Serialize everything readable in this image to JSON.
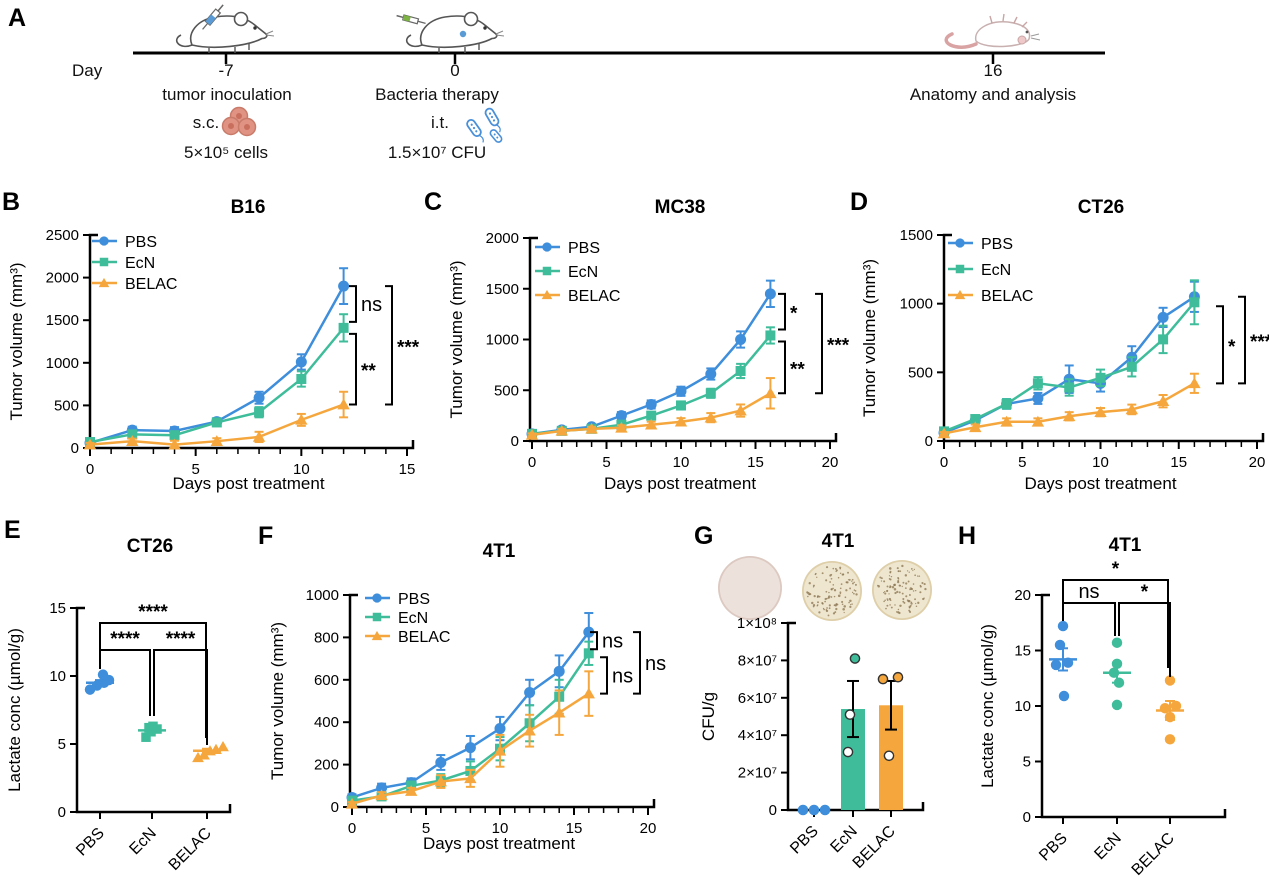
{
  "figure": {
    "panel_letters": [
      "A",
      "B",
      "C",
      "D",
      "E",
      "F",
      "G",
      "H"
    ],
    "timeline": {
      "axis_label": "Day",
      "events": [
        {
          "day": "-7",
          "title": "tumor inoculation",
          "route": "s.c.",
          "detail": "5×10⁵ cells",
          "icon": "tumor-cells"
        },
        {
          "day": "0",
          "title": "Bacteria therapy",
          "route": "i.t.",
          "detail": "1.5×10⁷ CFU",
          "icon": "bacteria"
        },
        {
          "day": "16",
          "title": "Anatomy and analysis",
          "icon": "dead-mouse"
        }
      ]
    }
  },
  "colors": {
    "PBS": "#3E8EDB",
    "EcN": "#3FBD9B",
    "BELAC": "#F5A73E",
    "axis": "#000000",
    "tumor_cell": "#E09283",
    "tumor_cell_dark": "#C96F5E",
    "bacteria_blue": "#4A90D9",
    "syringe_blue": "#5B9BD5",
    "syringe_green": "#7CB342",
    "dead_mouse_pink": "#D9A3A3",
    "dish_plain": "#EDE1DB",
    "dish_culture": "#EFE6CF",
    "colony": "#8A7450"
  },
  "chart_data": [
    {
      "panel": "B",
      "type": "line",
      "title": "B16",
      "xlabel": "Days post treatment",
      "ylabel": "Tumor volume (mm³)",
      "xlim": [
        0,
        15
      ],
      "xticks": [
        0,
        5,
        10,
        15
      ],
      "minor_x_step": 1,
      "ylim": [
        0,
        2500
      ],
      "yticks": [
        0,
        500,
        1000,
        1500,
        2000,
        2500
      ],
      "x": [
        0,
        2,
        4,
        6,
        8,
        10,
        12
      ],
      "series": [
        {
          "name": "PBS",
          "marker": "circle",
          "values": [
            60,
            210,
            200,
            310,
            590,
            1010,
            1900
          ],
          "errors": [
            30,
            40,
            45,
            40,
            70,
            90,
            210
          ]
        },
        {
          "name": "EcN",
          "marker": "square",
          "values": [
            70,
            160,
            150,
            300,
            420,
            810,
            1410
          ],
          "errors": [
            25,
            35,
            45,
            40,
            60,
            90,
            160
          ]
        },
        {
          "name": "BELAC",
          "marker": "triangle",
          "values": [
            40,
            80,
            40,
            80,
            130,
            330,
            510
          ],
          "errors": [
            20,
            30,
            45,
            35,
            60,
            70,
            150
          ]
        }
      ],
      "significance": [
        {
          "groups": [
            "PBS",
            "EcN"
          ],
          "label": "ns"
        },
        {
          "groups": [
            "EcN",
            "BELAC"
          ],
          "label": "**"
        },
        {
          "groups": [
            "PBS",
            "BELAC"
          ],
          "label": "***"
        }
      ]
    },
    {
      "panel": "C",
      "type": "line",
      "title": "MC38",
      "xlabel": "Days post treatment",
      "ylabel": "Tumor volume (mm³)",
      "xlim": [
        0,
        20
      ],
      "xticks": [
        0,
        5,
        10,
        15,
        20
      ],
      "minor_x_step": 1,
      "ylim": [
        0,
        2000
      ],
      "yticks": [
        0,
        500,
        1000,
        1500,
        2000
      ],
      "x": [
        0,
        2,
        4,
        6,
        8,
        10,
        12,
        14,
        16
      ],
      "series": [
        {
          "name": "PBS",
          "marker": "circle",
          "values": [
            70,
            110,
            140,
            250,
            360,
            490,
            660,
            1000,
            1450
          ],
          "errors": [
            20,
            20,
            25,
            35,
            40,
            45,
            55,
            80,
            130
          ]
        },
        {
          "name": "EcN",
          "marker": "square",
          "values": [
            70,
            100,
            120,
            160,
            250,
            350,
            470,
            690,
            1040
          ],
          "errors": [
            15,
            20,
            20,
            40,
            35,
            40,
            45,
            70,
            80
          ]
        },
        {
          "name": "BELAC",
          "marker": "triangle",
          "values": [
            60,
            100,
            120,
            130,
            160,
            190,
            230,
            300,
            470
          ],
          "errors": [
            15,
            20,
            20,
            25,
            30,
            35,
            45,
            60,
            150
          ]
        }
      ],
      "significance": [
        {
          "groups": [
            "PBS",
            "EcN"
          ],
          "label": "*"
        },
        {
          "groups": [
            "EcN",
            "BELAC"
          ],
          "label": "**"
        },
        {
          "groups": [
            "PBS",
            "BELAC"
          ],
          "label": "***"
        }
      ]
    },
    {
      "panel": "D",
      "type": "line",
      "title": "CT26",
      "xlabel": "Days post treatment",
      "ylabel": "Tumor volume (mm³)",
      "xlim": [
        0,
        20
      ],
      "xticks": [
        0,
        5,
        10,
        15,
        20
      ],
      "minor_x_step": 1,
      "ylim": [
        0,
        1500
      ],
      "yticks": [
        0,
        500,
        1000,
        1500
      ],
      "x": [
        0,
        2,
        4,
        6,
        8,
        10,
        12,
        14,
        16
      ],
      "series": [
        {
          "name": "PBS",
          "marker": "circle",
          "values": [
            60,
            150,
            270,
            310,
            450,
            420,
            610,
            900,
            1050
          ],
          "errors": [
            15,
            25,
            35,
            40,
            100,
            60,
            80,
            70,
            110
          ]
        },
        {
          "name": "EcN",
          "marker": "square",
          "values": [
            70,
            160,
            270,
            420,
            390,
            460,
            540,
            740,
            1010
          ],
          "errors": [
            15,
            25,
            35,
            45,
            60,
            60,
            70,
            100,
            160
          ]
        },
        {
          "name": "BELAC",
          "marker": "triangle",
          "values": [
            55,
            100,
            140,
            140,
            180,
            210,
            230,
            290,
            420
          ],
          "errors": [
            10,
            20,
            25,
            25,
            30,
            30,
            35,
            45,
            70
          ]
        }
      ],
      "significance": [
        {
          "groups": [
            "EcN",
            "BELAC"
          ],
          "label": "*"
        },
        {
          "groups": [
            "PBS",
            "BELAC"
          ],
          "label": "***"
        }
      ]
    },
    {
      "panel": "E",
      "type": "scatter",
      "title": "CT26",
      "ylabel": "Lactate conc (µmol/g)",
      "ylim": [
        0,
        15
      ],
      "yticks": [
        0,
        5,
        10,
        15
      ],
      "categories": [
        "PBS",
        "EcN",
        "BELAC"
      ],
      "groups": [
        {
          "name": "PBS",
          "marker": "circle",
          "points": [
            9.0,
            9.3,
            9.5,
            9.7,
            10.1
          ],
          "mean": 9.5,
          "sem": 0.2
        },
        {
          "name": "EcN",
          "marker": "square",
          "points": [
            5.5,
            5.9,
            6.1,
            6.2,
            6.3
          ],
          "mean": 6.0,
          "sem": 0.15
        },
        {
          "name": "BELAC",
          "marker": "triangle",
          "points": [
            4.0,
            4.2,
            4.5,
            4.6,
            4.8
          ],
          "mean": 4.5,
          "sem": 0.15
        }
      ],
      "significance": [
        {
          "groups": [
            "PBS",
            "BELAC"
          ],
          "label": "****"
        },
        {
          "groups": [
            "PBS",
            "EcN"
          ],
          "label": "****"
        },
        {
          "groups": [
            "EcN",
            "BELAC"
          ],
          "label": "****"
        }
      ]
    },
    {
      "panel": "F",
      "type": "line",
      "title": "4T1",
      "xlabel": "Days post treatment",
      "ylabel": "Tumor volume (mm³)",
      "xlim": [
        0,
        20
      ],
      "xticks": [
        0,
        5,
        10,
        15,
        20
      ],
      "minor_x_step": 1,
      "ylim": [
        0,
        1000
      ],
      "yticks": [
        0,
        200,
        400,
        600,
        800,
        1000
      ],
      "x": [
        0,
        2,
        4,
        6,
        8,
        10,
        12,
        14,
        16
      ],
      "series": [
        {
          "name": "PBS",
          "marker": "circle",
          "values": [
            45,
            90,
            115,
            210,
            280,
            370,
            540,
            640,
            825
          ],
          "errors": [
            15,
            20,
            20,
            35,
            55,
            55,
            60,
            75,
            90
          ]
        },
        {
          "name": "EcN",
          "marker": "square",
          "values": [
            30,
            50,
            100,
            125,
            170,
            275,
            395,
            520,
            725
          ],
          "errors": [
            10,
            15,
            20,
            30,
            45,
            55,
            85,
            80,
            55
          ]
        },
        {
          "name": "BELAC",
          "marker": "triangle",
          "values": [
            15,
            55,
            75,
            120,
            135,
            265,
            360,
            445,
            535
          ],
          "errors": [
            8,
            15,
            15,
            30,
            40,
            75,
            75,
            105,
            105
          ]
        }
      ],
      "significance": [
        {
          "groups": [
            "PBS",
            "EcN"
          ],
          "label": "ns"
        },
        {
          "groups": [
            "EcN",
            "BELAC"
          ],
          "label": "ns"
        },
        {
          "groups": [
            "PBS",
            "BELAC"
          ],
          "label": "ns"
        }
      ]
    },
    {
      "panel": "G",
      "type": "bar",
      "title": "4T1",
      "ylabel": "CFU/g",
      "ylim": [
        0,
        100000000
      ],
      "yticks": [
        0,
        20000000,
        40000000,
        60000000,
        80000000,
        100000000
      ],
      "ytick_labels": [
        "0",
        "2×10⁷",
        "4×10⁷",
        "6×10⁷",
        "8×10⁷",
        "1×10⁸"
      ],
      "categories": [
        "PBS",
        "EcN",
        "BELAC"
      ],
      "bars": [
        {
          "name": "PBS",
          "value": 0,
          "error": 0,
          "points": [
            {
              "value": 0,
              "style": "filled"
            },
            {
              "value": 0,
              "style": "filled"
            },
            {
              "value": 0,
              "style": "filled"
            }
          ]
        },
        {
          "name": "EcN",
          "value": 54000000,
          "error": 15000000,
          "points": [
            {
              "value": 81000000,
              "style": "filled"
            },
            {
              "value": 51000000,
              "style": "open"
            },
            {
              "value": 31000000,
              "style": "open"
            }
          ]
        },
        {
          "name": "BELAC",
          "value": 56000000,
          "error": 13000000,
          "points": [
            {
              "value": 70000000,
              "style": "filled"
            },
            {
              "value": 71000000,
              "style": "filled"
            },
            {
              "value": 29000000,
              "style": "open"
            }
          ]
        }
      ],
      "plates": [
        {
          "colonies": false
        },
        {
          "colonies": true
        },
        {
          "colonies": true
        }
      ],
      "significance": []
    },
    {
      "panel": "H",
      "type": "scatter",
      "title": "4T1",
      "ylabel": "Lactate conc (µmol/g)",
      "ylim": [
        0,
        20
      ],
      "yticks": [
        0,
        5,
        10,
        15,
        20
      ],
      "categories": [
        "PBS",
        "EcN",
        "BELAC"
      ],
      "groups": [
        {
          "name": "PBS",
          "marker": "circle",
          "points": [
            17.2,
            15.5,
            13.9,
            13.7,
            10.9
          ],
          "mean": 14.2,
          "sem": 1.0
        },
        {
          "name": "EcN",
          "marker": "circle",
          "points": [
            15.7,
            13.8,
            13.0,
            12.1,
            10.1
          ],
          "mean": 13.0,
          "sem": 0.9
        },
        {
          "name": "BELAC",
          "marker": "circle",
          "points": [
            12.3,
            10.0,
            9.8,
            9.0,
            7.0
          ],
          "mean": 9.6,
          "sem": 0.85
        }
      ],
      "significance": [
        {
          "groups": [
            "PBS",
            "BELAC"
          ],
          "label": "*"
        },
        {
          "groups": [
            "PBS",
            "EcN"
          ],
          "label": "ns"
        },
        {
          "groups": [
            "EcN",
            "BELAC"
          ],
          "label": "*"
        }
      ]
    }
  ]
}
